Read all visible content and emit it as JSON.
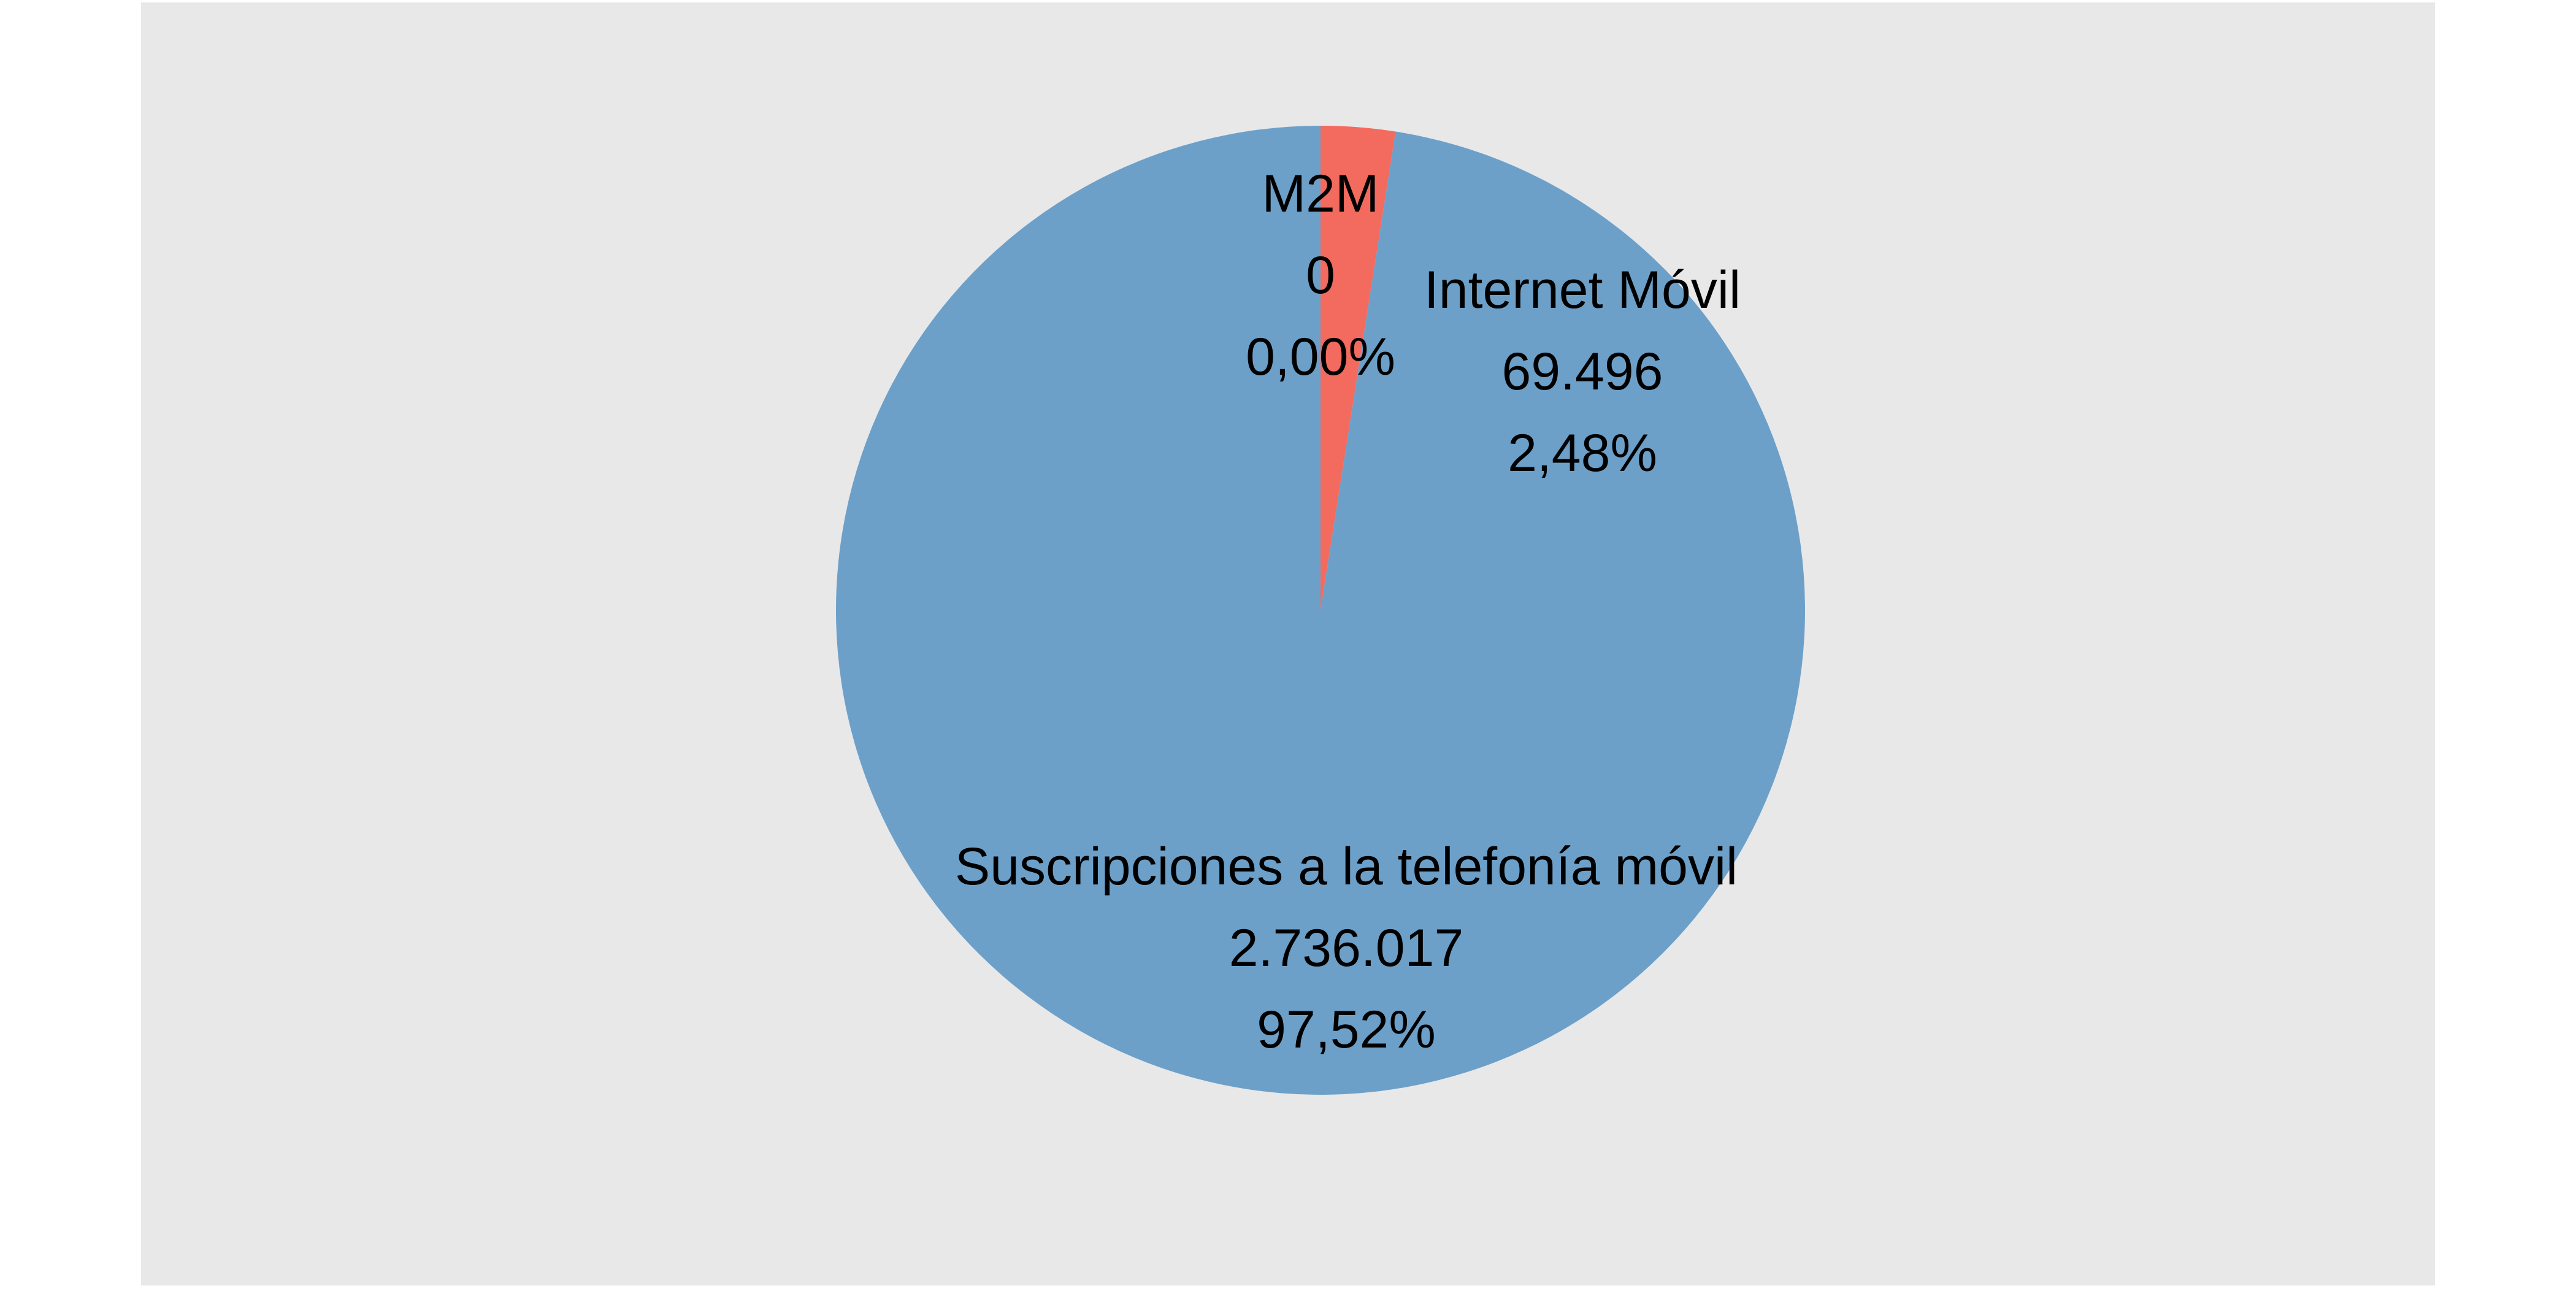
{
  "chart_data": {
    "type": "pie",
    "title": "",
    "start_angle_deg": 0,
    "direction": "clockwise",
    "background_color": "#E8E8E9",
    "slices": [
      {
        "name": "Internet Móvil",
        "value": 69496,
        "value_label": "69.496",
        "percent_label": "2,48%",
        "color": "#F36A5F"
      },
      {
        "name": "Suscripciones a la telefonía móvil",
        "value": 2736017,
        "value_label": "2.736.017",
        "percent_label": "97,52%",
        "color": "#6CA0C9"
      },
      {
        "name": "M2M",
        "value": 0,
        "value_label": "0",
        "percent_label": "0,00%",
        "color": "#6CA0C9"
      }
    ]
  }
}
